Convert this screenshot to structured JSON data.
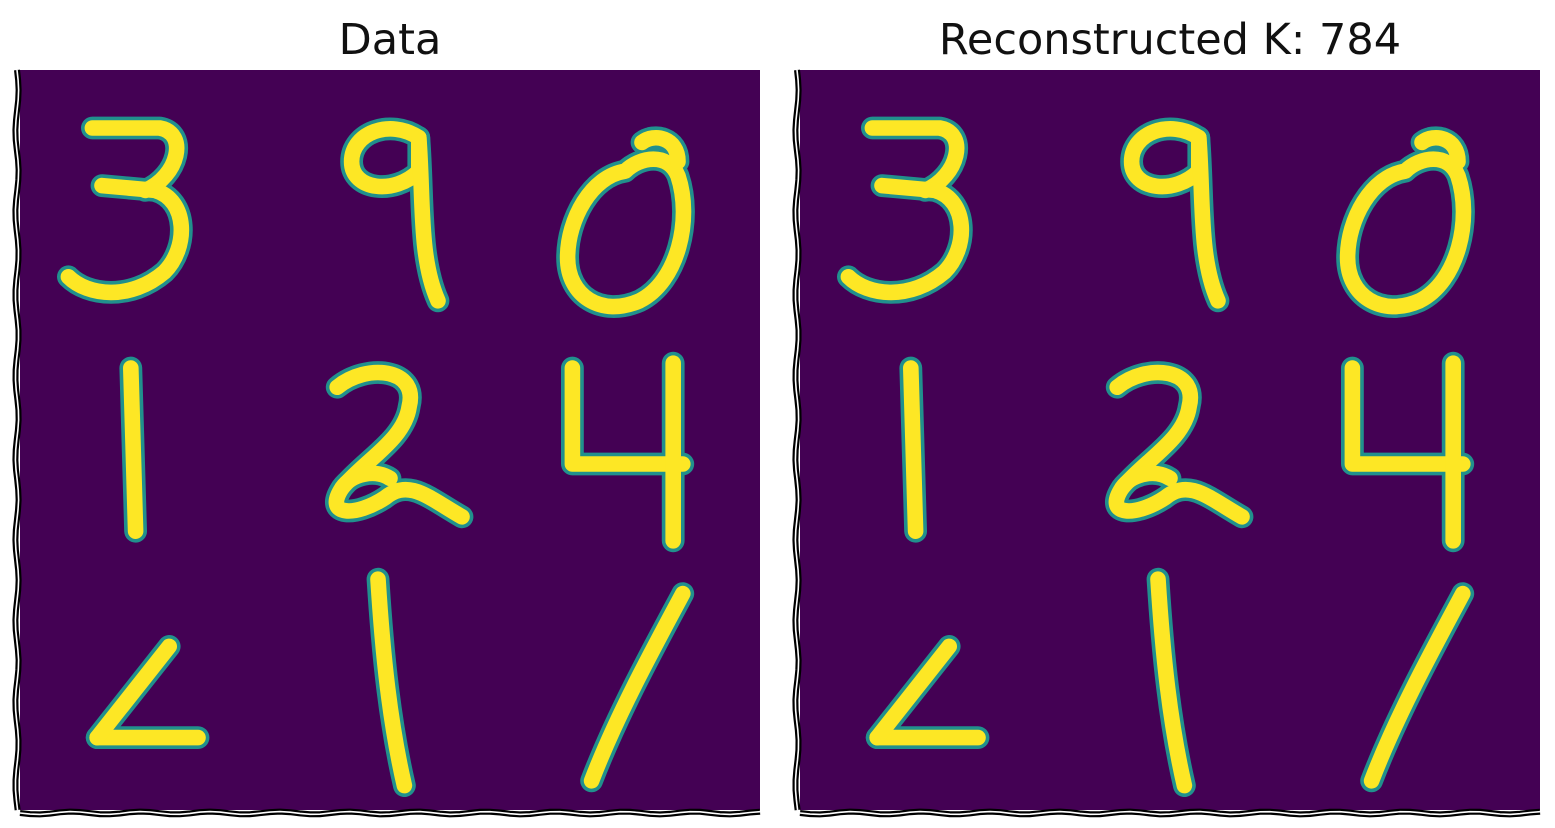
{
  "panels": [
    {
      "id": "left",
      "title": "Data"
    },
    {
      "id": "right",
      "title": "Reconstructed K: 784"
    }
  ],
  "colors": {
    "background": "#440154",
    "ink": "#fde725",
    "edge": "#21908d",
    "frame": "#000000"
  },
  "digits": [
    "3",
    "9",
    "0",
    "1",
    "2",
    "4",
    "4",
    "1",
    "1"
  ]
}
